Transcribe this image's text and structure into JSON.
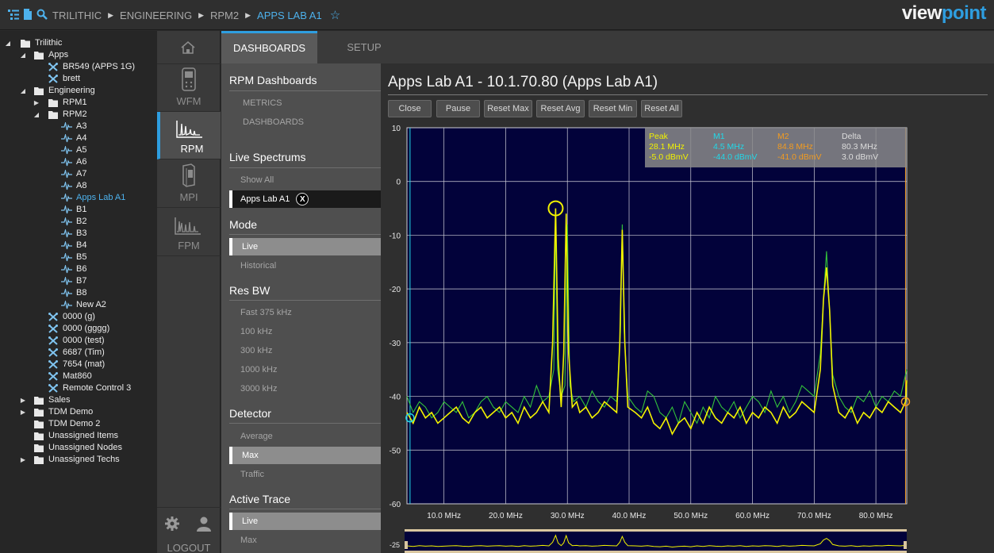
{
  "breadcrumb": {
    "items": [
      "TRILITHIC",
      "ENGINEERING",
      "RPM2"
    ],
    "current": "APPS LAB A1"
  },
  "brand": {
    "part1": "view",
    "part2": "point",
    "accent": "#2e9ee0"
  },
  "tree": [
    {
      "label": "Trilithic",
      "level": 0,
      "arrow": "expanded",
      "icon": "folder"
    },
    {
      "label": "Apps",
      "level": 1,
      "arrow": "expanded",
      "icon": "folder"
    },
    {
      "label": "BR549 (APPS 1G)",
      "level": 2,
      "arrow": "",
      "icon": "tools"
    },
    {
      "label": "brett",
      "level": 2,
      "arrow": "",
      "icon": "tools"
    },
    {
      "label": "Engineering",
      "level": 1,
      "arrow": "expanded",
      "icon": "folder"
    },
    {
      "label": "RPM1",
      "level": 2,
      "arrow": "collapsed",
      "icon": "folder"
    },
    {
      "label": "RPM2",
      "level": 2,
      "arrow": "expanded",
      "icon": "folder"
    },
    {
      "label": "A3",
      "level": 3,
      "arrow": "",
      "icon": "pulse"
    },
    {
      "label": "A4",
      "level": 3,
      "arrow": "",
      "icon": "pulse"
    },
    {
      "label": "A5",
      "level": 3,
      "arrow": "",
      "icon": "pulse"
    },
    {
      "label": "A6",
      "level": 3,
      "arrow": "",
      "icon": "pulse"
    },
    {
      "label": "A7",
      "level": 3,
      "arrow": "",
      "icon": "pulse"
    },
    {
      "label": "A8",
      "level": 3,
      "arrow": "",
      "icon": "pulse"
    },
    {
      "label": "Apps Lab A1",
      "level": 3,
      "arrow": "",
      "icon": "pulse",
      "selected": true
    },
    {
      "label": "B1",
      "level": 3,
      "arrow": "",
      "icon": "pulse"
    },
    {
      "label": "B2",
      "level": 3,
      "arrow": "",
      "icon": "pulse"
    },
    {
      "label": "B3",
      "level": 3,
      "arrow": "",
      "icon": "pulse"
    },
    {
      "label": "B4",
      "level": 3,
      "arrow": "",
      "icon": "pulse"
    },
    {
      "label": "B5",
      "level": 3,
      "arrow": "",
      "icon": "pulse"
    },
    {
      "label": "B6",
      "level": 3,
      "arrow": "",
      "icon": "pulse"
    },
    {
      "label": "B7",
      "level": 3,
      "arrow": "",
      "icon": "pulse"
    },
    {
      "label": "B8",
      "level": 3,
      "arrow": "",
      "icon": "pulse"
    },
    {
      "label": "New A2",
      "level": 3,
      "arrow": "",
      "icon": "pulse"
    },
    {
      "label": "0000 (g)",
      "level": 2,
      "arrow": "",
      "icon": "tools"
    },
    {
      "label": "0000 (gggg)",
      "level": 2,
      "arrow": "",
      "icon": "tools"
    },
    {
      "label": "0000 (test)",
      "level": 2,
      "arrow": "",
      "icon": "tools"
    },
    {
      "label": "6687 (Tim)",
      "level": 2,
      "arrow": "",
      "icon": "tools"
    },
    {
      "label": "7654 (mat)",
      "level": 2,
      "arrow": "",
      "icon": "tools"
    },
    {
      "label": "Mat860",
      "level": 2,
      "arrow": "",
      "icon": "tools"
    },
    {
      "label": "Remote Control 3",
      "level": 2,
      "arrow": "",
      "icon": "tools"
    },
    {
      "label": "Sales",
      "level": 1,
      "arrow": "collapsed",
      "icon": "folder"
    },
    {
      "label": "TDM Demo",
      "level": 1,
      "arrow": "collapsed",
      "icon": "folder"
    },
    {
      "label": "TDM Demo 2",
      "level": 1,
      "arrow": "",
      "icon": "folder"
    },
    {
      "label": "Unassigned Items",
      "level": 1,
      "arrow": "",
      "icon": "folder"
    },
    {
      "label": "Unassigned Nodes",
      "level": 1,
      "arrow": "",
      "icon": "folder"
    },
    {
      "label": "Unassigned Techs",
      "level": 1,
      "arrow": "collapsed",
      "icon": "folder"
    }
  ],
  "nav": {
    "wfm": "WFM",
    "rpm": "RPM",
    "mpi": "MPI",
    "fpm": "FPM",
    "logout": "LOGOUT"
  },
  "tabs": {
    "dashboards": "DASHBOARDS",
    "setup": "SETUP"
  },
  "panel": {
    "rpm_dashboards": {
      "header": "RPM Dashboards",
      "metrics": "METRICS",
      "dashboards": "DASHBOARDS"
    },
    "live_spectrums": {
      "header": "Live Spectrums",
      "show_all": "Show All",
      "current": "Apps Lab A1",
      "close": "X"
    },
    "mode": {
      "header": "Mode",
      "options": [
        "Live",
        "Historical"
      ],
      "selected": "Live"
    },
    "res_bw": {
      "header": "Res BW",
      "options": [
        "Fast 375 kHz",
        "100 kHz",
        "300 kHz",
        "1000 kHz",
        "3000 kHz"
      ]
    },
    "detector": {
      "header": "Detector",
      "options": [
        "Average",
        "Max",
        "Traffic"
      ],
      "selected": "Max"
    },
    "active_trace": {
      "header": "Active Trace",
      "options": [
        "Live",
        "Max"
      ],
      "selected": "Live"
    }
  },
  "main": {
    "title": "Apps Lab A1 - 10.1.70.80 (Apps Lab A1)",
    "buttons": [
      "Close",
      "Pause",
      "Reset Max",
      "Reset Avg",
      "Reset Min",
      "Reset All"
    ]
  },
  "markers": {
    "peak": {
      "label": "Peak",
      "freq": "28.1 MHz",
      "level": "-5.0 dBmV",
      "color": "#f2f200"
    },
    "m1": {
      "label": "M1",
      "freq": "4.5 MHz",
      "level": "-44.0 dBmV",
      "color": "#22d8e8"
    },
    "m2": {
      "label": "M2",
      "freq": "84.8 MHz",
      "level": "-41.0 dBmV",
      "color": "#f29b20"
    },
    "delta": {
      "label": "Delta",
      "freq": "80.3 MHz",
      "level": "3.0 dBmV",
      "color": "#dddddd"
    }
  },
  "chart_data": {
    "type": "line",
    "xlabel": "",
    "ylabel": "",
    "xlim": [
      4,
      85
    ],
    "ylim": [
      -60,
      10
    ],
    "yticks": [
      10,
      0,
      -10,
      -20,
      -30,
      -40,
      -50,
      -60
    ],
    "xticks": [
      10,
      20,
      30,
      40,
      50,
      60,
      70,
      80
    ],
    "xtick_labels": [
      "10.0 MHz",
      "20.0 MHz",
      "30.0 MHz",
      "40.0 MHz",
      "50.0 MHz",
      "60.0 MHz",
      "70.0 MHz",
      "80.0 MHz"
    ],
    "grid": true,
    "mini_ytick": "-25",
    "series": [
      {
        "color": "#33c23a",
        "x": [
          4,
          5,
          6,
          7,
          8,
          9,
          10,
          11,
          12,
          13,
          14,
          15,
          16,
          17,
          18,
          19,
          20,
          21,
          22,
          23,
          24,
          25,
          26,
          27,
          27.8,
          28.1,
          28.4,
          29,
          29.6,
          30,
          30.4,
          31,
          32,
          33,
          34,
          35,
          36,
          37,
          38,
          38.6,
          38.9,
          39.2,
          39.8,
          41,
          42,
          43,
          44,
          45,
          46,
          47,
          48,
          49,
          50,
          51,
          52,
          53,
          54,
          55,
          56,
          57,
          58,
          59,
          60,
          61,
          62,
          63,
          64,
          65,
          66,
          67,
          68,
          69,
          70,
          71,
          71.6,
          72,
          72.4,
          73,
          74,
          75,
          76,
          77,
          78,
          79,
          80,
          81,
          82,
          83,
          84,
          85
        ],
        "y": [
          -40,
          -43,
          -41,
          -42,
          -44,
          -43,
          -41,
          -42,
          -43,
          -41,
          -44,
          -43,
          -41,
          -40,
          -42,
          -43,
          -41,
          -42,
          -43,
          -40,
          -42,
          -38,
          -41,
          -40,
          -35,
          -6,
          -35,
          -40,
          -38,
          -8,
          -38,
          -41,
          -40,
          -42,
          -39,
          -41,
          -42,
          -40,
          -41,
          -28,
          -8,
          -28,
          -40,
          -42,
          -43,
          -39,
          -40,
          -43,
          -44,
          -42,
          -45,
          -41,
          -43,
          -45,
          -42,
          -44,
          -40,
          -42,
          -43,
          -41,
          -44,
          -42,
          -40,
          -41,
          -43,
          -39,
          -42,
          -40,
          -43,
          -41,
          -38,
          -39,
          -40,
          -32,
          -20,
          -13,
          -22,
          -36,
          -40,
          -42,
          -43,
          -40,
          -41,
          -39,
          -42,
          -40,
          -41,
          -39,
          -40,
          -35
        ]
      },
      {
        "color": "#f2f200",
        "x": [
          4,
          5,
          6,
          7,
          8,
          9,
          10,
          11,
          12,
          13,
          14,
          15,
          16,
          17,
          18,
          19,
          20,
          21,
          22,
          23,
          24,
          25,
          26,
          27,
          27.6,
          28.1,
          28.5,
          29,
          29.4,
          29.8,
          30.2,
          30.8,
          31.5,
          32,
          33,
          34,
          35,
          36,
          37,
          38,
          38.5,
          38.9,
          39.3,
          39.8,
          41,
          42,
          43,
          44,
          45,
          46,
          47,
          48,
          49,
          50,
          51,
          52,
          53,
          54,
          55,
          56,
          57,
          58,
          59,
          60,
          61,
          62,
          63,
          64,
          65,
          66,
          67,
          68,
          69,
          70,
          71,
          71.5,
          72,
          72.5,
          73,
          74,
          75,
          76,
          77,
          78,
          79,
          80,
          81,
          82,
          83,
          84,
          84.8,
          85
        ],
        "y": [
          -43,
          -45,
          -42,
          -44,
          -43,
          -45,
          -44,
          -43,
          -42,
          -44,
          -45,
          -43,
          -42,
          -44,
          -43,
          -42,
          -44,
          -43,
          -45,
          -42,
          -44,
          -43,
          -41,
          -43,
          -30,
          -5,
          -33,
          -42,
          -32,
          -6,
          -32,
          -42,
          -41,
          -43,
          -42,
          -44,
          -43,
          -41,
          -42,
          -43,
          -30,
          -9,
          -30,
          -42,
          -43,
          -44,
          -42,
          -45,
          -46,
          -44,
          -47,
          -45,
          -44,
          -46,
          -43,
          -45,
          -42,
          -44,
          -45,
          -43,
          -44,
          -42,
          -45,
          -43,
          -44,
          -42,
          -43,
          -45,
          -42,
          -44,
          -43,
          -41,
          -42,
          -43,
          -35,
          -22,
          -16,
          -24,
          -38,
          -43,
          -44,
          -42,
          -45,
          -43,
          -44,
          -42,
          -43,
          -41,
          -42,
          -43,
          -41,
          -37
        ]
      }
    ]
  }
}
